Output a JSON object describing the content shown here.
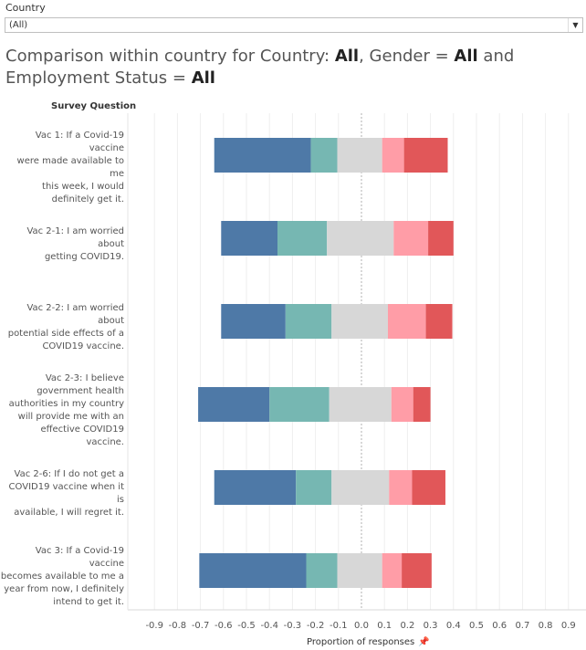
{
  "filter": {
    "label": "Country",
    "value": "(All)"
  },
  "title": {
    "prefix": "Comparison within country for Country: ",
    "country": "All",
    "gender_prefix": ", Gender = ",
    "gender": "All",
    "employment_prefix": " and Employment Status = ",
    "employment": "All"
  },
  "chart_data": {
    "type": "bar",
    "subtype": "diverging-stacked-horizontal",
    "rows_header": "Survey Question",
    "xlabel": "Proportion of responses",
    "xlim": [
      -0.95,
      0.95
    ],
    "x_ticks": [
      "-0.9",
      "-0.8",
      "-0.7",
      "-0.6",
      "-0.5",
      "-0.4",
      "-0.3",
      "-0.2",
      "-0.1",
      "0.0",
      "0.1",
      "0.2",
      "0.3",
      "0.4",
      "0.5",
      "0.6",
      "0.7",
      "0.8",
      "0.9"
    ],
    "grid": true,
    "segment_colors": [
      "#4e79a7",
      "#76b7b2",
      "#d7d7d7",
      "#ff9da7",
      "#e15759"
    ],
    "categories": [
      "Vac 1: If a Covid-19 vaccine were made available to me this week, I would definitely get it.",
      "Vac 2-1: I am worried about getting COVID19.",
      "Vac 2-2: I am worried about potential side effects of a COVID19 vaccine.",
      "Vac 2-3: I believe government health authorities in my country will provide me with an effective COVID19 vaccine.",
      "Vac 2-6: If I do not get a COVID19 vaccine when it is available, I will regret it.",
      "Vac 3: If a Covid-19 vaccine becomes available to me a year from now, I definitely intend to get it."
    ],
    "label_lines": [
      [
        "Vac 1: If a Covid-19 vaccine",
        "were made available to me",
        "this week, I would",
        "definitely get it."
      ],
      [
        "Vac 2-1: I am worried about",
        "getting COVID19."
      ],
      [
        "Vac 2-2: I am worried about",
        "potential side effects of a",
        "COVID19 vaccine."
      ],
      [
        "Vac 2-3: I believe",
        "government health",
        "authorities in my country",
        "will provide me with an",
        "effective COVID19 vaccine."
      ],
      [
        "Vac 2-6: If I do not get a",
        "COVID19 vaccine when it is",
        "available, I will regret it."
      ],
      [
        "Vac 3: If a Covid-19 vaccine",
        "becomes available to me a",
        "year from now, I definitely",
        "intend to get it."
      ]
    ],
    "segments": [
      [
        [
          -0.64,
          -0.22
        ],
        [
          -0.22,
          -0.105
        ],
        [
          -0.105,
          0.09
        ],
        [
          0.09,
          0.185
        ],
        [
          0.185,
          0.375
        ]
      ],
      [
        [
          -0.61,
          -0.365
        ],
        [
          -0.365,
          -0.15
        ],
        [
          -0.15,
          0.14
        ],
        [
          0.14,
          0.29
        ],
        [
          0.29,
          0.4
        ]
      ],
      [
        [
          -0.61,
          -0.33
        ],
        [
          -0.33,
          -0.13
        ],
        [
          -0.13,
          0.115
        ],
        [
          0.115,
          0.28
        ],
        [
          0.28,
          0.395
        ]
      ],
      [
        [
          -0.71,
          -0.4
        ],
        [
          -0.4,
          -0.14
        ],
        [
          -0.14,
          0.13
        ],
        [
          0.13,
          0.225
        ],
        [
          0.225,
          0.3
        ]
      ],
      [
        [
          -0.64,
          -0.285
        ],
        [
          -0.285,
          -0.13
        ],
        [
          -0.13,
          0.12
        ],
        [
          0.12,
          0.22
        ],
        [
          0.22,
          0.365
        ]
      ],
      [
        [
          -0.705,
          -0.24
        ],
        [
          -0.24,
          -0.105
        ],
        [
          -0.105,
          0.09
        ],
        [
          0.09,
          0.175
        ],
        [
          0.175,
          0.305
        ]
      ]
    ]
  }
}
